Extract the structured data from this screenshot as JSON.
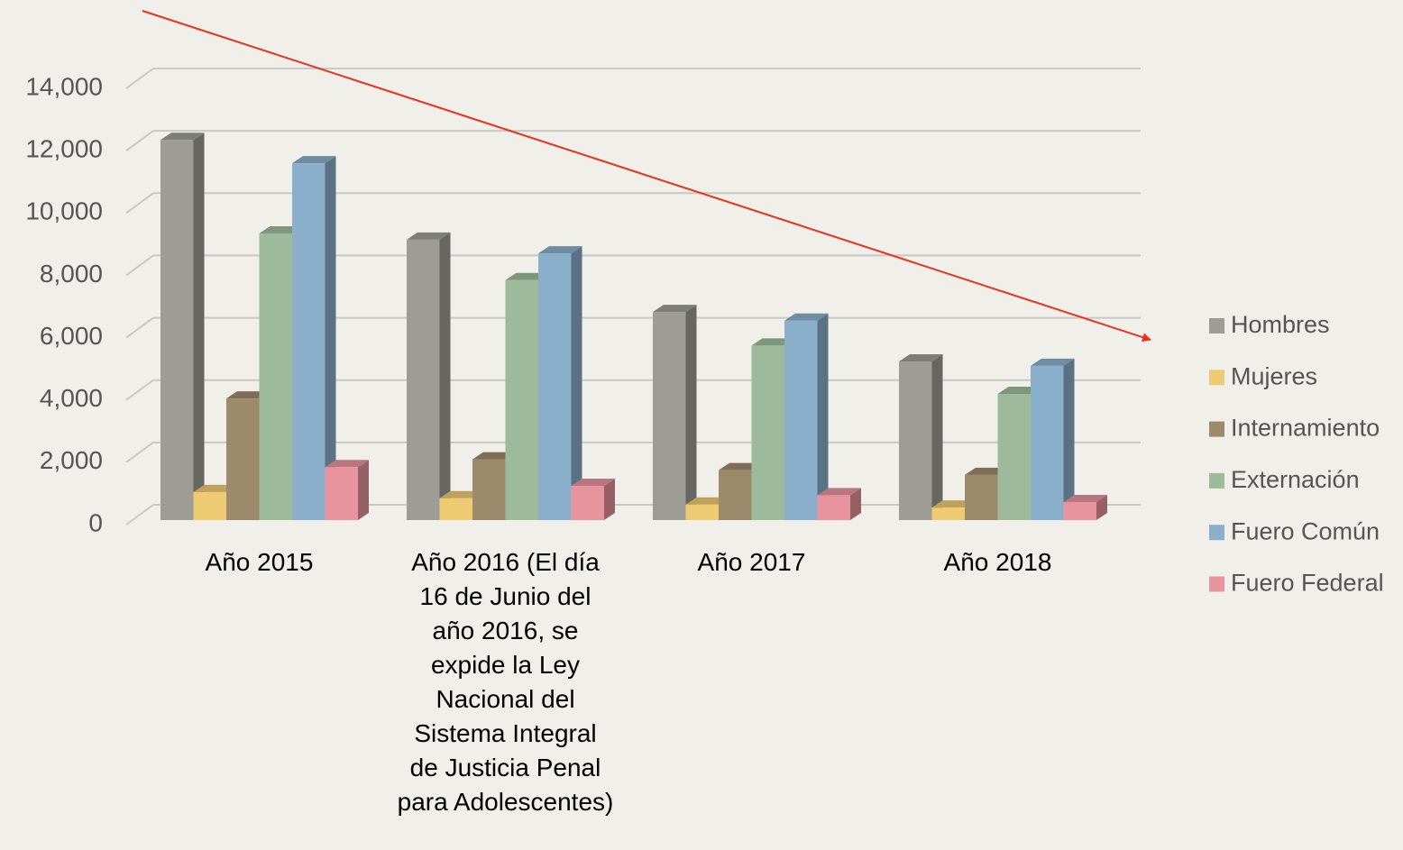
{
  "chart_data": {
    "type": "bar3d",
    "categories": [
      "Año 2015",
      "Año 2016 (El día 16 de Junio del año 2016, se expide la Ley Nacional del Sistema Integral de Justicia Penal para Adolescentes)",
      "Año 2017",
      "Año 2018"
    ],
    "series": [
      {
        "name": "Hombres",
        "color": "#9d9d96",
        "values": [
          12200,
          9000,
          6680,
          5090
        ]
      },
      {
        "name": "Mujeres",
        "color": "#eecb73",
        "values": [
          900,
          700,
          500,
          400
        ]
      },
      {
        "name": "Internamiento",
        "color": "#9d8a6c",
        "values": [
          3900,
          1950,
          1600,
          1450
        ]
      },
      {
        "name": "Externación",
        "color": "#9dbb9a",
        "values": [
          9200,
          7700,
          5600,
          4050
        ]
      },
      {
        "name": "Fuero Común",
        "color": "#8aafca",
        "values": [
          11450,
          8560,
          6400,
          4950
        ]
      },
      {
        "name": "Fuero Federal",
        "color": "#e8949e",
        "values": [
          1700,
          1100,
          800,
          580
        ]
      }
    ],
    "ylim": [
      0,
      14000
    ],
    "yticks": [
      0,
      {
        "value": 2000,
        "label": "2,000"
      },
      {
        "value": 4000,
        "label": "4,000"
      },
      {
        "value": 6000,
        "label": "6,000"
      },
      {
        "value": 8000,
        "label": "8,000"
      },
      {
        "value": 10000,
        "label": "10,000"
      },
      {
        "value": 12000,
        "label": "12,000"
      },
      {
        "value": 14000,
        "label": "14,000"
      }
    ],
    "grid": true,
    "legend": "right"
  }
}
